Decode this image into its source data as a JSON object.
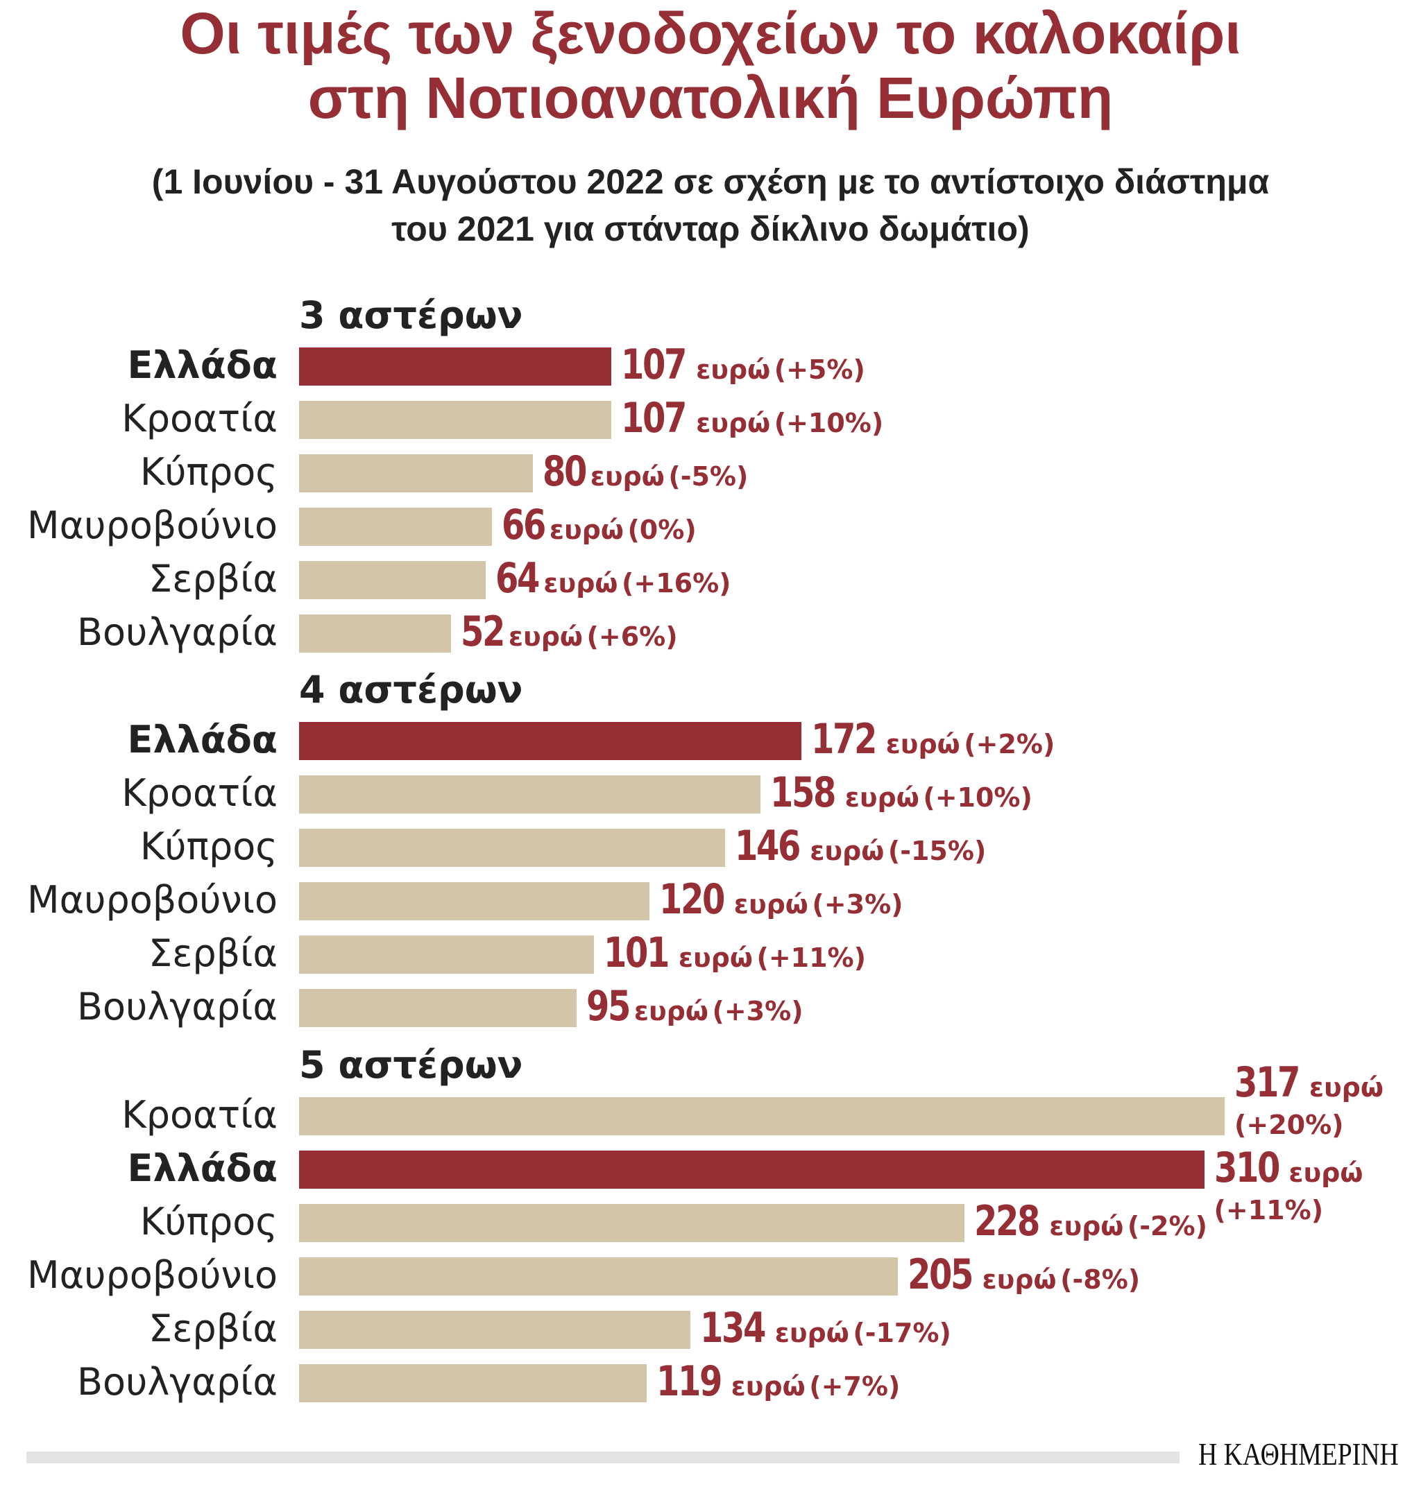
{
  "colors": {
    "highlight": "#962e35",
    "default": "#d3c5a7"
  },
  "chart_data": {
    "type": "bar",
    "orientation": "horizontal",
    "title": [
      "Οι τιμές των ξενοδοχείων το καλοκαίρι",
      "στη Νοτιοανατολική Ευρώπη"
    ],
    "subtitle": [
      "(1 Ιουνίου - 31 Αυγούστου 2022 σε σχέση με το αντίστοιχο διάστημα",
      "του 2021 για στάνταρ δίκλινο δωμάτιο)"
    ],
    "unit": "ευρώ",
    "xlim": [
      0,
      317
    ],
    "grid": false,
    "groups": [
      {
        "title": "3 αστέρων",
        "items": [
          {
            "country": "Ελλάδα",
            "value": 107,
            "pct": "(+5%)",
            "highlight": true
          },
          {
            "country": "Κροατία",
            "value": 107,
            "pct": "(+10%)",
            "highlight": false
          },
          {
            "country": "Κύπρος",
            "value": 80,
            "pct": "(-5%)",
            "highlight": false
          },
          {
            "country": "Μαυροβούνιο",
            "value": 66,
            "pct": "(0%)",
            "highlight": false
          },
          {
            "country": "Σερβία",
            "value": 64,
            "pct": "(+16%)",
            "highlight": false
          },
          {
            "country": "Βουλγαρία",
            "value": 52,
            "pct": "(+6%)",
            "highlight": false
          }
        ]
      },
      {
        "title": "4 αστέρων",
        "items": [
          {
            "country": "Ελλάδα",
            "value": 172,
            "pct": "(+2%)",
            "highlight": true
          },
          {
            "country": "Κροατία",
            "value": 158,
            "pct": "(+10%)",
            "highlight": false
          },
          {
            "country": "Κύπρος",
            "value": 146,
            "pct": "(-15%)",
            "highlight": false
          },
          {
            "country": "Μαυροβούνιο",
            "value": 120,
            "pct": "(+3%)",
            "highlight": false
          },
          {
            "country": "Σερβία",
            "value": 101,
            "pct": "(+11%)",
            "highlight": false
          },
          {
            "country": "Βουλγαρία",
            "value": 95,
            "pct": "(+3%)",
            "highlight": false
          }
        ]
      },
      {
        "title": "5 αστέρων",
        "items": [
          {
            "country": "Κροατία",
            "value": 317,
            "pct": "(+20%)",
            "highlight": false
          },
          {
            "country": "Ελλάδα",
            "value": 310,
            "pct": "(+11%)",
            "highlight": true
          },
          {
            "country": "Κύπρος",
            "value": 228,
            "pct": "(-2%)",
            "highlight": false
          },
          {
            "country": "Μαυροβούνιο",
            "value": 205,
            "pct": "(-8%)",
            "highlight": false
          },
          {
            "country": "Σερβία",
            "value": 134,
            "pct": "(-17%)",
            "highlight": false
          },
          {
            "country": "Βουλγαρία",
            "value": 119,
            "pct": "(+7%)",
            "highlight": false
          }
        ]
      }
    ]
  },
  "footer": {
    "logo": "Η ΚΑΘΗΜΕΡΙΝΗ"
  }
}
